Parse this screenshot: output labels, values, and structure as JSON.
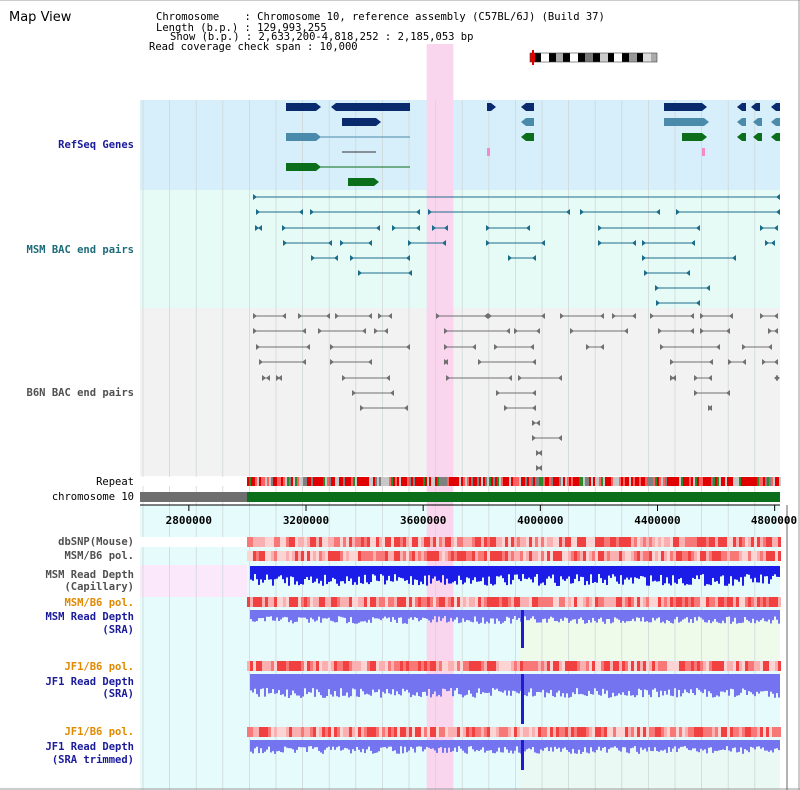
{
  "page": {
    "title": "Map View"
  },
  "info": {
    "line1": "Chromosome    : Chromosome 10, reference assembly (C57BL/6J) (Build 37)",
    "line2": "Length (b.p.) : 129,993,255",
    "line3": "Show (b.p.) : 2,633,200-4,818,252 : 2,185,053 bp",
    "line4": "Read coverage check span : 10,000"
  },
  "tracks": {
    "refseq": "RefSeq Genes",
    "msm_bac": "MSM BAC end pairs",
    "b6n_bac": "B6N BAC end pairs",
    "repeat": "Repeat",
    "chromosome": "chromosome 10",
    "dbsnp": "dbSNP(Mouse)",
    "msm_b6_pol_1": "MSM/B6 pol.",
    "msm_depth_cap_1": "MSM Read Depth",
    "msm_depth_cap_2": "(Capillary)",
    "msm_b6_pol_2": "MSM/B6 pol.",
    "msm_depth_sra_1": "MSM Read Depth",
    "msm_depth_sra_2": "(SRA)",
    "jf1_pol_1": "JF1/B6 pol.",
    "jf1_depth_sra_1": "JF1 Read Depth",
    "jf1_depth_sra_2": "(SRA)",
    "jf1_pol_2": "JF1/B6 pol.",
    "jf1_depth_trim_1": "JF1 Read Depth",
    "jf1_depth_trim_2": "(SRA trimmed)"
  },
  "axis": {
    "ticks": [
      "2800000",
      "3200000",
      "3600000",
      "4000000",
      "4400000",
      "4800000"
    ],
    "tick_values": [
      2800000,
      3200000,
      3600000,
      4000000,
      4400000,
      4800000
    ],
    "range": [
      2633200,
      4818252
    ]
  },
  "highlight": {
    "start": 3612000,
    "end": 3703000
  },
  "colors": {
    "refseq_bg": "#d7effb",
    "msm_bg": "#e6fbf6",
    "b6n_bg": "#f2f2f2",
    "highlight": "#f9d6ee",
    "gene_navy": "#0a2a6e",
    "gene_steel": "#4a8aaa",
    "gene_green": "#0a6e1a",
    "msm_pair": "#1c6b8a",
    "b6n_pair": "#707070",
    "chromosome_green": "#0a6e1a",
    "depth_blue": "#1c1ce8",
    "depth_light": "#7474f0"
  }
}
